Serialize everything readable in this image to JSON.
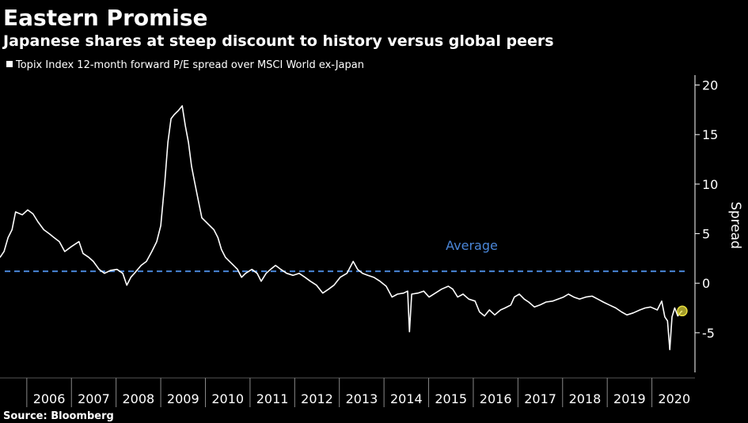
{
  "chart_data": {
    "type": "line",
    "title": "Eastern Promise",
    "subtitle": "Japanese shares at steep discount to history versus global peers",
    "y_label": "Spread",
    "source": "Source: Bloomberg",
    "x": [
      2005.4,
      2005.49,
      2005.58,
      2005.67,
      2005.75,
      2005.9,
      2006.02,
      2006.14,
      2006.25,
      2006.38,
      2006.5,
      2006.61,
      2006.73,
      2006.85,
      2007.0,
      2007.17,
      2007.26,
      2007.39,
      2007.49,
      2007.62,
      2007.74,
      2007.88,
      2008.02,
      2008.15,
      2008.24,
      2008.33,
      2008.41,
      2008.56,
      2008.68,
      2008.8,
      2008.91,
      2009.0,
      2009.09,
      2009.16,
      2009.23,
      2009.3,
      2009.39,
      2009.48,
      2009.55,
      2009.62,
      2009.69,
      2009.76,
      2009.83,
      2009.92,
      2010.01,
      2010.1,
      2010.19,
      2010.28,
      2010.36,
      2010.45,
      2010.54,
      2010.63,
      2010.72,
      2010.81,
      2010.9,
      2011.04,
      2011.16,
      2011.25,
      2011.36,
      2011.46,
      2011.57,
      2011.69,
      2011.82,
      2011.96,
      2012.1,
      2012.23,
      2012.35,
      2012.49,
      2012.63,
      2012.76,
      2012.88,
      2013.02,
      2013.17,
      2013.31,
      2013.41,
      2013.52,
      2013.64,
      2013.77,
      2013.91,
      2014.05,
      2014.18,
      2014.3,
      2014.44,
      2014.53,
      2014.57,
      2014.62,
      2014.76,
      2014.89,
      2015.01,
      2015.15,
      2015.29,
      2015.44,
      2015.54,
      2015.65,
      2015.77,
      2015.9,
      2016.04,
      2016.14,
      2016.25,
      2016.36,
      2016.48,
      2016.61,
      2016.71,
      2016.84,
      2016.92,
      2017.03,
      2017.14,
      2017.24,
      2017.37,
      2017.49,
      2017.63,
      2017.78,
      2017.9,
      2018.02,
      2018.13,
      2018.25,
      2018.38,
      2018.52,
      2018.66,
      2018.79,
      2018.91,
      2019.05,
      2019.19,
      2019.32,
      2019.44,
      2019.58,
      2019.73,
      2019.85,
      2019.97,
      2020.12,
      2020.22,
      2020.29,
      2020.35,
      2020.4,
      2020.45,
      2020.51,
      2020.58,
      2020.65,
      2020.68
    ],
    "series": [
      {
        "name": "Topix Index 12-month forward P/E spread over MSCI World ex-Japan",
        "color": "#ffffff",
        "values": [
          2.6,
          3.2,
          4.6,
          5.4,
          7.2,
          6.9,
          7.4,
          7.0,
          6.2,
          5.4,
          5.0,
          4.6,
          4.2,
          3.2,
          3.7,
          4.2,
          3.0,
          2.6,
          2.2,
          1.4,
          1.0,
          1.3,
          1.4,
          1.0,
          -0.2,
          0.6,
          1.0,
          1.8,
          2.2,
          3.2,
          4.2,
          5.8,
          10.2,
          14.2,
          16.6,
          17.0,
          17.4,
          17.9,
          15.9,
          14.2,
          11.8,
          10.2,
          8.6,
          6.6,
          6.2,
          5.8,
          5.4,
          4.6,
          3.4,
          2.6,
          2.2,
          1.8,
          1.4,
          0.6,
          1.0,
          1.4,
          1.0,
          0.2,
          1.0,
          1.4,
          1.8,
          1.4,
          1.0,
          0.8,
          1.0,
          0.6,
          0.2,
          -0.2,
          -1.0,
          -0.6,
          -0.2,
          0.6,
          1.0,
          2.2,
          1.4,
          1.0,
          0.8,
          0.6,
          0.2,
          -0.3,
          -1.4,
          -1.1,
          -1.0,
          -0.8,
          -4.9,
          -1.1,
          -1.0,
          -0.8,
          -1.4,
          -1.0,
          -0.6,
          -0.3,
          -0.6,
          -1.4,
          -1.1,
          -1.6,
          -1.8,
          -2.9,
          -3.3,
          -2.7,
          -3.2,
          -2.7,
          -2.5,
          -2.2,
          -1.4,
          -1.1,
          -1.6,
          -1.9,
          -2.4,
          -2.2,
          -1.9,
          -1.8,
          -1.6,
          -1.4,
          -1.1,
          -1.4,
          -1.6,
          -1.4,
          -1.3,
          -1.6,
          -1.9,
          -2.2,
          -2.5,
          -2.9,
          -3.2,
          -3.0,
          -2.7,
          -2.5,
          -2.4,
          -2.7,
          -1.8,
          -3.4,
          -3.8,
          -6.7,
          -3.4,
          -2.5,
          -3.3,
          -2.9,
          -2.8
        ]
      }
    ],
    "last_marker_color": "#e6dc3c",
    "average": {
      "value": 1.2,
      "label": "Average",
      "color": "#4a86d8"
    },
    "xlim": [
      2005.4,
      2021
    ],
    "xticks": [
      2006,
      2007,
      2008,
      2009,
      2010,
      2011,
      2012,
      2013,
      2014,
      2015,
      2016,
      2017,
      2018,
      2019,
      2020
    ],
    "ylim": [
      -9,
      21
    ],
    "yticks": [
      20,
      15,
      10,
      5,
      0,
      -5
    ]
  }
}
